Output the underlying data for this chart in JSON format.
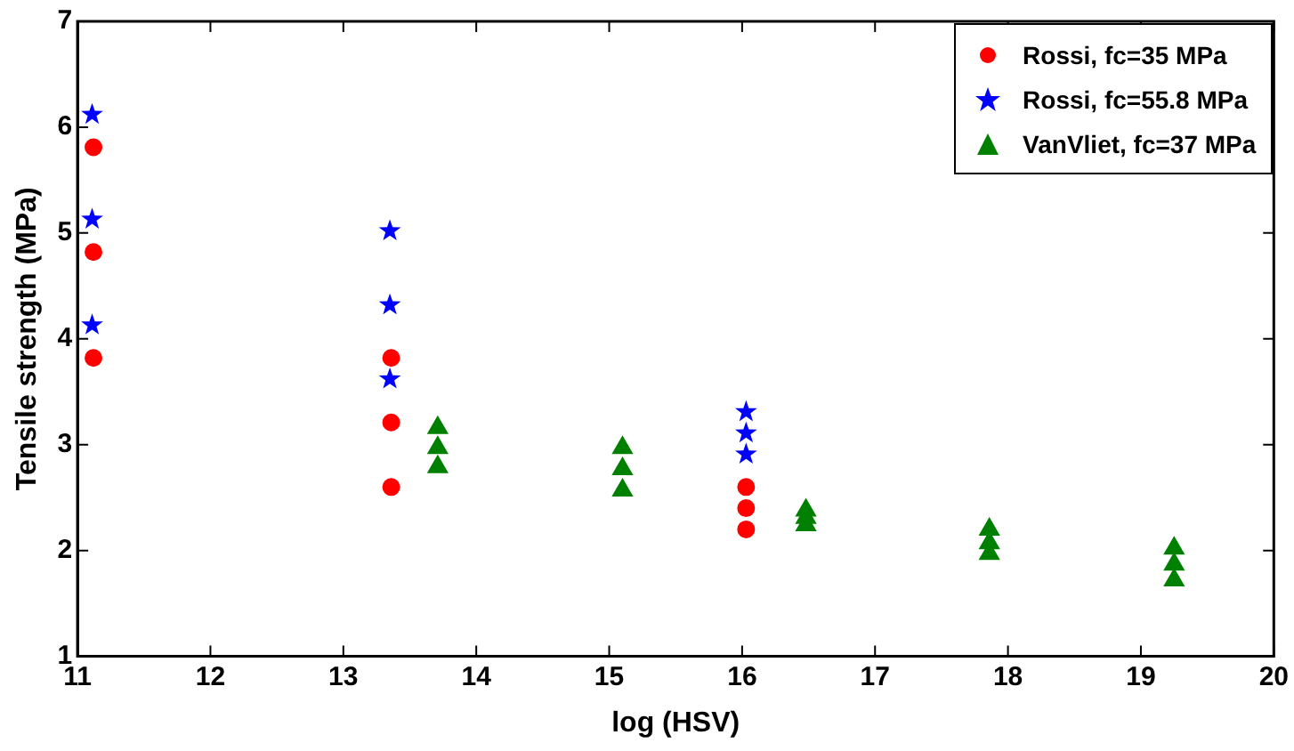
{
  "chart_data": {
    "type": "scatter",
    "xlabel": "log (HSV)",
    "ylabel": "Tensile strength (MPa)",
    "xlim": [
      11,
      20
    ],
    "xticks": [
      11,
      12,
      13,
      14,
      15,
      16,
      17,
      18,
      19,
      20
    ],
    "ylim": [
      1,
      7
    ],
    "yticks": [
      1,
      2,
      3,
      4,
      5,
      6,
      7
    ],
    "grid": false,
    "legend": "top right",
    "series": [
      {
        "name": "Rossi, fc=35 MPa",
        "color": "#ff0000",
        "marker": "circle",
        "x": [
          11.12,
          11.12,
          11.12,
          13.36,
          13.36,
          13.36,
          16.03,
          16.03,
          16.03
        ],
        "values": [
          5.81,
          4.82,
          3.82,
          3.82,
          3.21,
          2.6,
          2.6,
          2.4,
          2.2
        ]
      },
      {
        "name": "Rossi, fc=55.8 MPa",
        "color": "#0000ff",
        "marker": "star",
        "x": [
          11.11,
          11.11,
          11.11,
          13.35,
          13.35,
          13.35,
          16.03,
          16.03,
          16.03
        ],
        "values": [
          6.12,
          5.13,
          4.13,
          5.02,
          4.32,
          3.62,
          3.31,
          3.11,
          2.91
        ]
      },
      {
        "name": "VanVliet, fc=37 MPa",
        "color": "#008000",
        "marker": "triangle",
        "x": [
          13.71,
          13.71,
          13.71,
          15.1,
          15.1,
          15.1,
          16.48,
          16.48,
          16.48,
          17.86,
          17.86,
          17.86,
          19.25,
          19.25,
          19.25
        ],
        "values": [
          3.16,
          2.97,
          2.79,
          2.97,
          2.77,
          2.57,
          2.38,
          2.31,
          2.24,
          2.2,
          2.07,
          1.97,
          2.02,
          1.87,
          1.72
        ]
      }
    ]
  }
}
